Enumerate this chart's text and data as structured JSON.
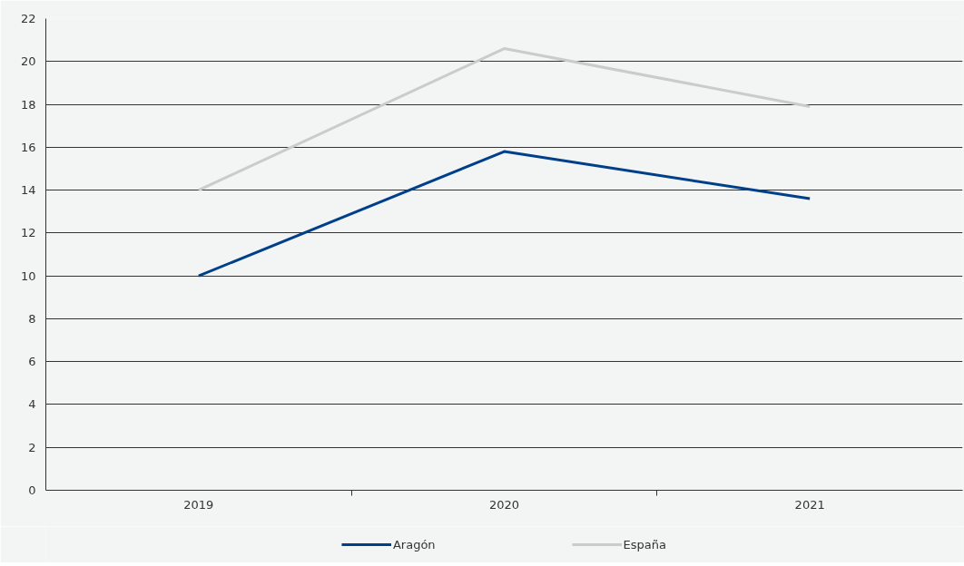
{
  "chart_data": {
    "type": "line",
    "categories": [
      "2019",
      "2020",
      "2021"
    ],
    "series": [
      {
        "name": "Aragón",
        "color": "#003f8a",
        "values": [
          10.0,
          15.8,
          13.6
        ]
      },
      {
        "name": "España",
        "color": "#c8cccc",
        "values": [
          14.0,
          20.6,
          17.9
        ]
      }
    ],
    "ylim": [
      0,
      22
    ],
    "yticks": [
      0,
      2,
      4,
      6,
      8,
      10,
      12,
      14,
      16,
      18,
      20,
      22
    ],
    "grid": "y",
    "legend": "bottom",
    "line_style": "solid",
    "marker": "none"
  }
}
